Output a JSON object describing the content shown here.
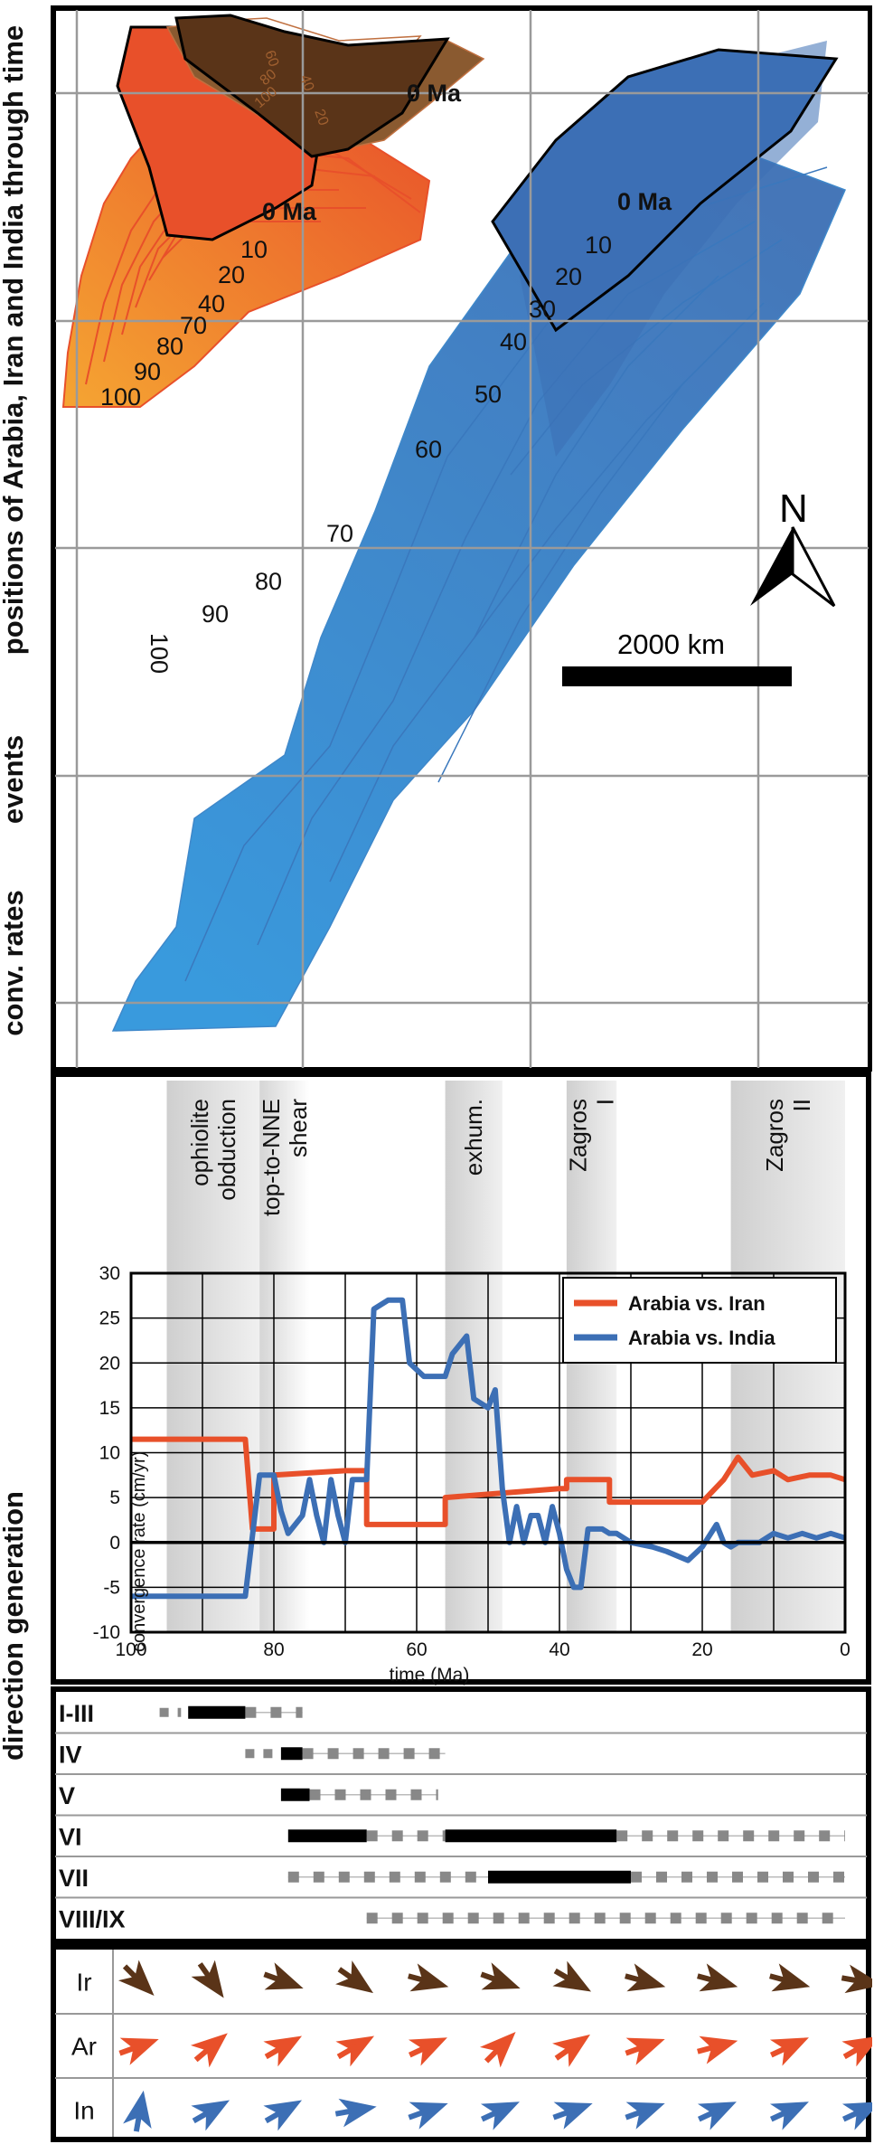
{
  "side_labels": {
    "map": "positions of Arabia, Iran and India through time",
    "events": "events",
    "rates": "conv. rates",
    "direction": "direction generation"
  },
  "map": {
    "labels_zero": [
      "0 Ma",
      "0 Ma",
      "0 Ma"
    ],
    "iran_ages": [
      "60",
      "40",
      "20",
      "80",
      "100"
    ],
    "arabia_ages": [
      "10",
      "20",
      "40",
      "70",
      "80",
      "90",
      "100"
    ],
    "india_ages": [
      "10",
      "20",
      "30",
      "40",
      "50",
      "60",
      "70",
      "80",
      "90",
      "100"
    ],
    "north_label": "N",
    "scale_label": "2000 km",
    "colors": {
      "iran": "#5a3418",
      "arabia_young": "#e8502a",
      "arabia_old": "#f5a532",
      "india_dark": "#3c6fb5",
      "india_light": "#2f95dc"
    }
  },
  "events": [
    {
      "label": "ophiolite obduction",
      "range": [
        95,
        82
      ]
    },
    {
      "label": "top-to-NNE shear",
      "range": [
        82,
        75
      ]
    },
    {
      "label": "exhum.",
      "range": [
        56,
        48
      ]
    },
    {
      "label": "Zagros I",
      "range": [
        39,
        32
      ]
    },
    {
      "label": "Zagros II",
      "range": [
        16,
        0
      ]
    }
  ],
  "chart_data": {
    "type": "line",
    "ylabel": "convergence rate (cm/yr)",
    "xlabel": "time (Ma)",
    "xlim": [
      100,
      0
    ],
    "ylim": [
      -10,
      30
    ],
    "xticks": [
      "100",
      "80",
      "60",
      "40",
      "20",
      "0"
    ],
    "yticks": [
      "30",
      "25",
      "20",
      "15",
      "10",
      "5",
      "0",
      "-5",
      "-10"
    ],
    "legend_position": "top-right",
    "series": [
      {
        "name": "Arabia vs. Iran",
        "color": "#e8502a",
        "x": [
          100,
          84,
          83,
          80,
          80,
          70,
          67,
          67,
          58,
          56,
          56,
          40,
          39,
          39,
          36,
          36,
          33,
          33,
          20,
          17,
          15,
          13,
          10,
          8,
          5,
          2,
          0
        ],
        "y": [
          11.5,
          11.5,
          1.5,
          1.5,
          7.5,
          8,
          8,
          2,
          2,
          2,
          5,
          6,
          6,
          7,
          7,
          7,
          7,
          4.5,
          4.5,
          7,
          9.5,
          7.5,
          8,
          7,
          7.5,
          7.5,
          7
        ]
      },
      {
        "name": "Arabia vs. India",
        "color": "#3c6fb5",
        "x": [
          100,
          84,
          82,
          80,
          79,
          78,
          76,
          75,
          74,
          73,
          72,
          71,
          70,
          69,
          67,
          66,
          64,
          62,
          61,
          59,
          56,
          55,
          53,
          52,
          50,
          49,
          48,
          47,
          46,
          45,
          44,
          43,
          42,
          41,
          40,
          39,
          38,
          37,
          36,
          35,
          34,
          33,
          32,
          30,
          27,
          25,
          22,
          20,
          18,
          17,
          16,
          15,
          14,
          12,
          10,
          8,
          6,
          4,
          2,
          0
        ],
        "y": [
          -6,
          -6,
          7.5,
          7.5,
          3.5,
          1,
          3,
          7,
          3,
          0,
          7,
          3,
          0,
          7,
          7,
          26,
          27,
          27,
          20,
          18.5,
          18.5,
          21,
          23,
          16,
          15,
          17,
          6,
          0,
          4,
          0,
          3,
          3,
          0,
          4,
          1,
          -3,
          -5,
          -5,
          1.5,
          1.5,
          1.5,
          1,
          1,
          0,
          -0.5,
          -1,
          -2,
          -0.5,
          2,
          0,
          -0.5,
          0,
          0,
          0,
          1,
          0.5,
          1,
          0.5,
          1,
          0.5
        ]
      }
    ]
  },
  "generations": [
    {
      "label": "I-III"
    },
    {
      "label": "IV"
    },
    {
      "label": "V"
    },
    {
      "label": "VI"
    },
    {
      "label": "VII"
    },
    {
      "label": "VIII/IX"
    }
  ],
  "directions": {
    "rows": [
      {
        "label": "Ir",
        "color": "#5a3418",
        "angles": [
          -45,
          -55,
          -20,
          -35,
          -15,
          -20,
          -30,
          -15,
          -15,
          -15,
          -10
        ]
      },
      {
        "label": "Ar",
        "color": "#e8502a",
        "angles": [
          20,
          40,
          30,
          30,
          25,
          45,
          35,
          20,
          15,
          25,
          30
        ]
      },
      {
        "label": "In",
        "color": "#3c6fb5",
        "angles": [
          80,
          30,
          30,
          10,
          20,
          25,
          20,
          20,
          25,
          25,
          25
        ]
      }
    ]
  }
}
